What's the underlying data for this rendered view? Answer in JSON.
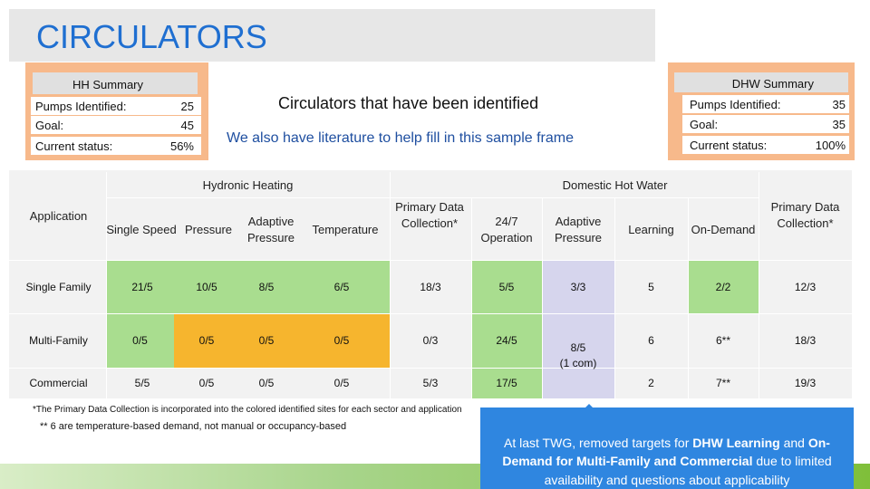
{
  "title": "CIRCULATORS",
  "hh_summary": {
    "heading": "HH Summary",
    "rows": [
      {
        "label": "Pumps Identified:",
        "value": "25"
      },
      {
        "label": "Goal:",
        "value": "45"
      },
      {
        "label": "Current status:",
        "value": "56%"
      }
    ]
  },
  "dhw_summary": {
    "heading": "DHW Summary",
    "rows": [
      {
        "label": "Pumps Identified:",
        "value": "35"
      },
      {
        "label": "Goal:",
        "value": "35"
      },
      {
        "label": "Current status:",
        "value": "100%"
      }
    ]
  },
  "headline": "Circulators that have been identified",
  "subheadline": "We also have literature to help fill in this sample frame",
  "table": {
    "group_hydronic": "Hydronic Heating",
    "group_dhw": "Domestic Hot Water",
    "app_header": "Application",
    "columns": [
      "Single Speed",
      "Pressure",
      "Adaptive Pressure",
      "Temperature",
      "Primary Data Collection*",
      "24/7 Operation",
      "Adaptive Pressure",
      "Learning",
      "On-Demand",
      "Primary Data Collection*"
    ],
    "rows": [
      {
        "label": "Single Family",
        "cells": [
          "21/5",
          "10/5",
          "8/5",
          "6/5",
          "18/3",
          "5/5",
          "3/3",
          "5",
          "2/2",
          "12/3"
        ]
      },
      {
        "label": "Multi-Family",
        "cells": [
          "0/5",
          "0/5",
          "0/5",
          "0/5",
          "0/3",
          "24/5",
          "",
          "6",
          "6**",
          "18/3"
        ]
      },
      {
        "label": "Commercial",
        "cells": [
          "5/5",
          "0/5",
          "0/5",
          "0/5",
          "5/3",
          "17/5",
          "",
          "2",
          "7**",
          "19/3"
        ]
      }
    ],
    "merged_adaptive_value": "8/5",
    "merged_adaptive_note": "(1 com)"
  },
  "footnote1": "*The Primary Data Collection is incorporated into the colored identified sites for each sector and application",
  "footnote2": "** 6 are temperature-based demand, not manual or occupancy-based",
  "callout": {
    "p1": "At last TWG, removed targets for ",
    "b1": "DHW Learning",
    "p2": " and ",
    "b2": "On-Demand for Multi-Family and Commercial",
    "p3": " due to limited availability and questions about applicability"
  },
  "colors": {
    "title": "#1f6fd1",
    "summary_bg": "#f7b98b",
    "green": "#a9dd8f",
    "orange": "#f6b52e",
    "lavender": "#d6d5ed",
    "callout": "#2f86e0"
  }
}
